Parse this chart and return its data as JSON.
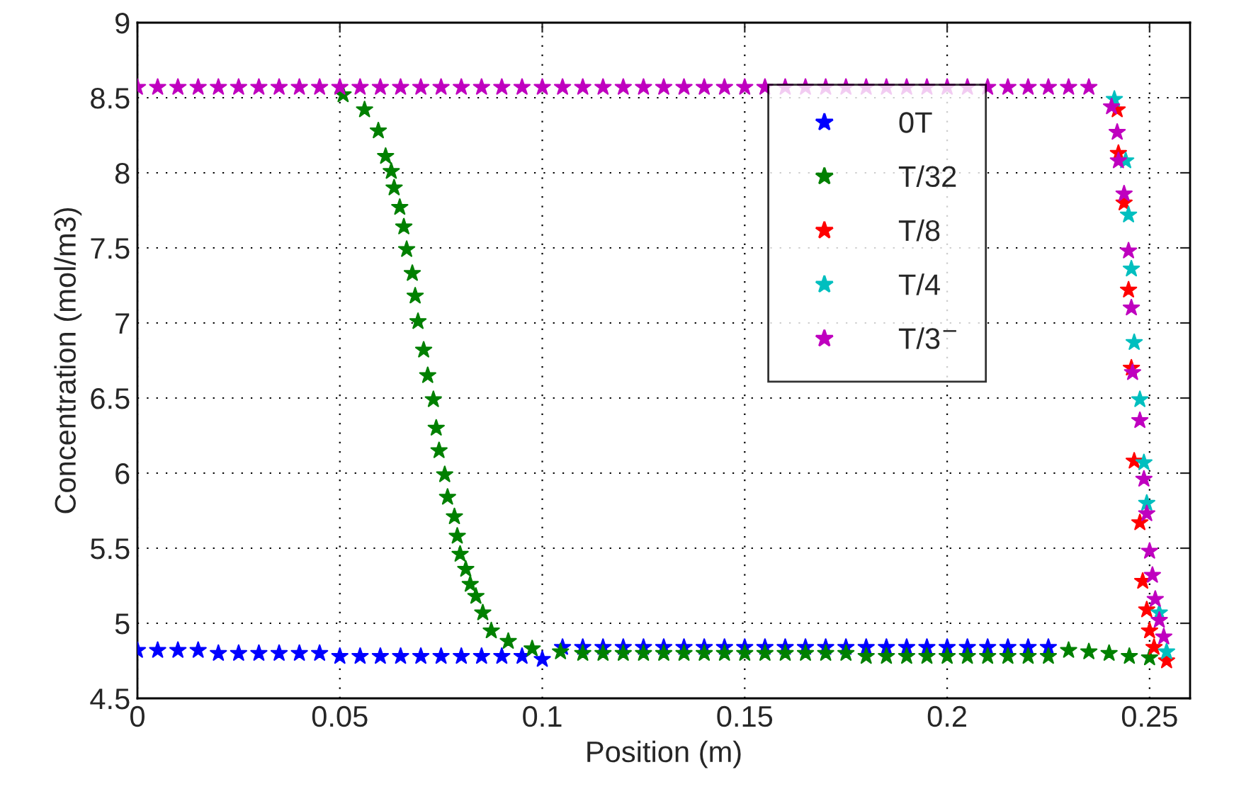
{
  "chart_data": {
    "type": "scatter",
    "xlabel": "Position (m)",
    "ylabel": "Concentration (mol/m3)",
    "xlim": [
      0,
      0.26
    ],
    "ylim": [
      4.5,
      9
    ],
    "xticks": [
      0,
      0.05,
      0.1,
      0.15,
      0.2,
      0.25
    ],
    "yticks": [
      4.5,
      5,
      5.5,
      6,
      6.5,
      7,
      7.5,
      8,
      8.5,
      9
    ],
    "grid": true,
    "legend": "top right",
    "marker": "star",
    "series": [
      {
        "name": "0T",
        "color": "#0000ff",
        "x": [
          0,
          0.005,
          0.01,
          0.015,
          0.02,
          0.025,
          0.03,
          0.035,
          0.04,
          0.045,
          0.05,
          0.055,
          0.06,
          0.065,
          0.07,
          0.075,
          0.08,
          0.085,
          0.09,
          0.095,
          0.1,
          0.105,
          0.11,
          0.115,
          0.12,
          0.125,
          0.13,
          0.135,
          0.14,
          0.145,
          0.15,
          0.155,
          0.16,
          0.165,
          0.17,
          0.175,
          0.18,
          0.185,
          0.19,
          0.195,
          0.2,
          0.205,
          0.21,
          0.215,
          0.22,
          0.225
        ],
        "values": [
          4.82,
          4.82,
          4.82,
          4.82,
          4.8,
          4.8,
          4.8,
          4.8,
          4.8,
          4.8,
          4.78,
          4.78,
          4.78,
          4.78,
          4.78,
          4.78,
          4.78,
          4.78,
          4.78,
          4.78,
          4.76,
          4.84,
          4.84,
          4.84,
          4.84,
          4.84,
          4.84,
          4.84,
          4.84,
          4.84,
          4.84,
          4.84,
          4.84,
          4.84,
          4.84,
          4.84,
          4.84,
          4.84,
          4.84,
          4.84,
          4.84,
          4.84,
          4.84,
          4.84,
          4.84,
          4.84
        ]
      },
      {
        "name": "T/32",
        "color": "#008000",
        "x": [
          0.0508,
          0.0561,
          0.0595,
          0.0613,
          0.0627,
          0.0634,
          0.0648,
          0.0658,
          0.0665,
          0.0679,
          0.0686,
          0.0693,
          0.0707,
          0.0717,
          0.0731,
          0.0738,
          0.0745,
          0.0759,
          0.0766,
          0.0783,
          0.079,
          0.0797,
          0.0811,
          0.0822,
          0.0836,
          0.0853,
          0.0874,
          0.0916,
          0.0975,
          0.1045,
          0.11,
          0.115,
          0.12,
          0.125,
          0.13,
          0.135,
          0.14,
          0.145,
          0.15,
          0.155,
          0.16,
          0.165,
          0.17,
          0.175,
          0.18,
          0.185,
          0.19,
          0.195,
          0.2,
          0.205,
          0.21,
          0.215,
          0.22,
          0.225,
          0.23,
          0.235,
          0.24,
          0.245,
          0.25
        ],
        "values": [
          8.52,
          8.42,
          8.28,
          8.11,
          8.01,
          7.9,
          7.77,
          7.64,
          7.49,
          7.33,
          7.18,
          7.01,
          6.82,
          6.65,
          6.49,
          6.3,
          6.15,
          5.99,
          5.84,
          5.71,
          5.58,
          5.46,
          5.36,
          5.26,
          5.18,
          5.07,
          4.95,
          4.88,
          4.83,
          4.81,
          4.8,
          4.8,
          4.8,
          4.8,
          4.8,
          4.8,
          4.8,
          4.8,
          4.8,
          4.8,
          4.8,
          4.8,
          4.8,
          4.8,
          4.78,
          4.78,
          4.78,
          4.78,
          4.78,
          4.78,
          4.78,
          4.78,
          4.78,
          4.78,
          4.82,
          4.81,
          4.8,
          4.78,
          4.77
        ]
      },
      {
        "name": "T/8",
        "color": "#ff0000",
        "x": [
          0.242,
          0.2423,
          0.2437,
          0.2448,
          0.2455,
          0.2462,
          0.2476,
          0.2483,
          0.2493,
          0.25,
          0.2511,
          0.2542
        ],
        "values": [
          8.42,
          8.13,
          7.8,
          7.22,
          6.7,
          6.08,
          5.67,
          5.28,
          5.09,
          4.95,
          4.84,
          4.75
        ]
      },
      {
        "name": "T/4",
        "color": "#00bfbf",
        "x": [
          0.2413,
          0.2423,
          0.2441,
          0.2448,
          0.2455,
          0.2462,
          0.2476,
          0.2486,
          0.2493,
          0.2507,
          0.2524,
          0.2542
        ],
        "values": [
          8.49,
          null,
          8.08,
          7.72,
          7.36,
          6.87,
          6.49,
          6.07,
          5.8,
          null,
          5.07,
          4.81
        ]
      },
      {
        "name": "T/3$^{−}$",
        "color": "#bf00bf",
        "x": [
          0,
          0.005,
          0.01,
          0.015,
          0.02,
          0.025,
          0.03,
          0.035,
          0.04,
          0.045,
          0.05,
          0.055,
          0.06,
          0.065,
          0.07,
          0.075,
          0.08,
          0.085,
          0.09,
          0.095,
          0.1,
          0.105,
          0.11,
          0.115,
          0.12,
          0.125,
          0.13,
          0.135,
          0.14,
          0.145,
          0.15,
          0.155,
          0.16,
          0.165,
          0.17,
          0.175,
          0.18,
          0.185,
          0.19,
          0.195,
          0.2,
          0.205,
          0.21,
          0.215,
          0.22,
          0.225,
          0.23,
          0.235,
          0.2406,
          0.242,
          0.2423,
          0.2437,
          0.2448,
          0.2455,
          0.2458,
          0.2476,
          0.2486,
          0.2493,
          0.25,
          0.2507,
          0.2514,
          0.2524,
          0.2535
        ],
        "values": [
          8.57,
          8.57,
          8.57,
          8.57,
          8.57,
          8.57,
          8.57,
          8.57,
          8.57,
          8.57,
          8.57,
          8.57,
          8.57,
          8.57,
          8.57,
          8.57,
          8.57,
          8.57,
          8.57,
          8.57,
          8.57,
          8.57,
          8.57,
          8.57,
          8.57,
          8.57,
          8.57,
          8.57,
          8.57,
          8.57,
          8.57,
          8.57,
          8.57,
          8.57,
          8.57,
          8.57,
          8.57,
          8.57,
          8.57,
          8.57,
          8.57,
          8.57,
          8.57,
          8.57,
          8.57,
          8.57,
          8.57,
          8.57,
          8.44,
          8.27,
          8.08,
          7.86,
          7.48,
          7.1,
          6.67,
          6.35,
          5.96,
          5.73,
          5.48,
          5.32,
          5.16,
          5.02,
          4.91
        ]
      }
    ]
  }
}
